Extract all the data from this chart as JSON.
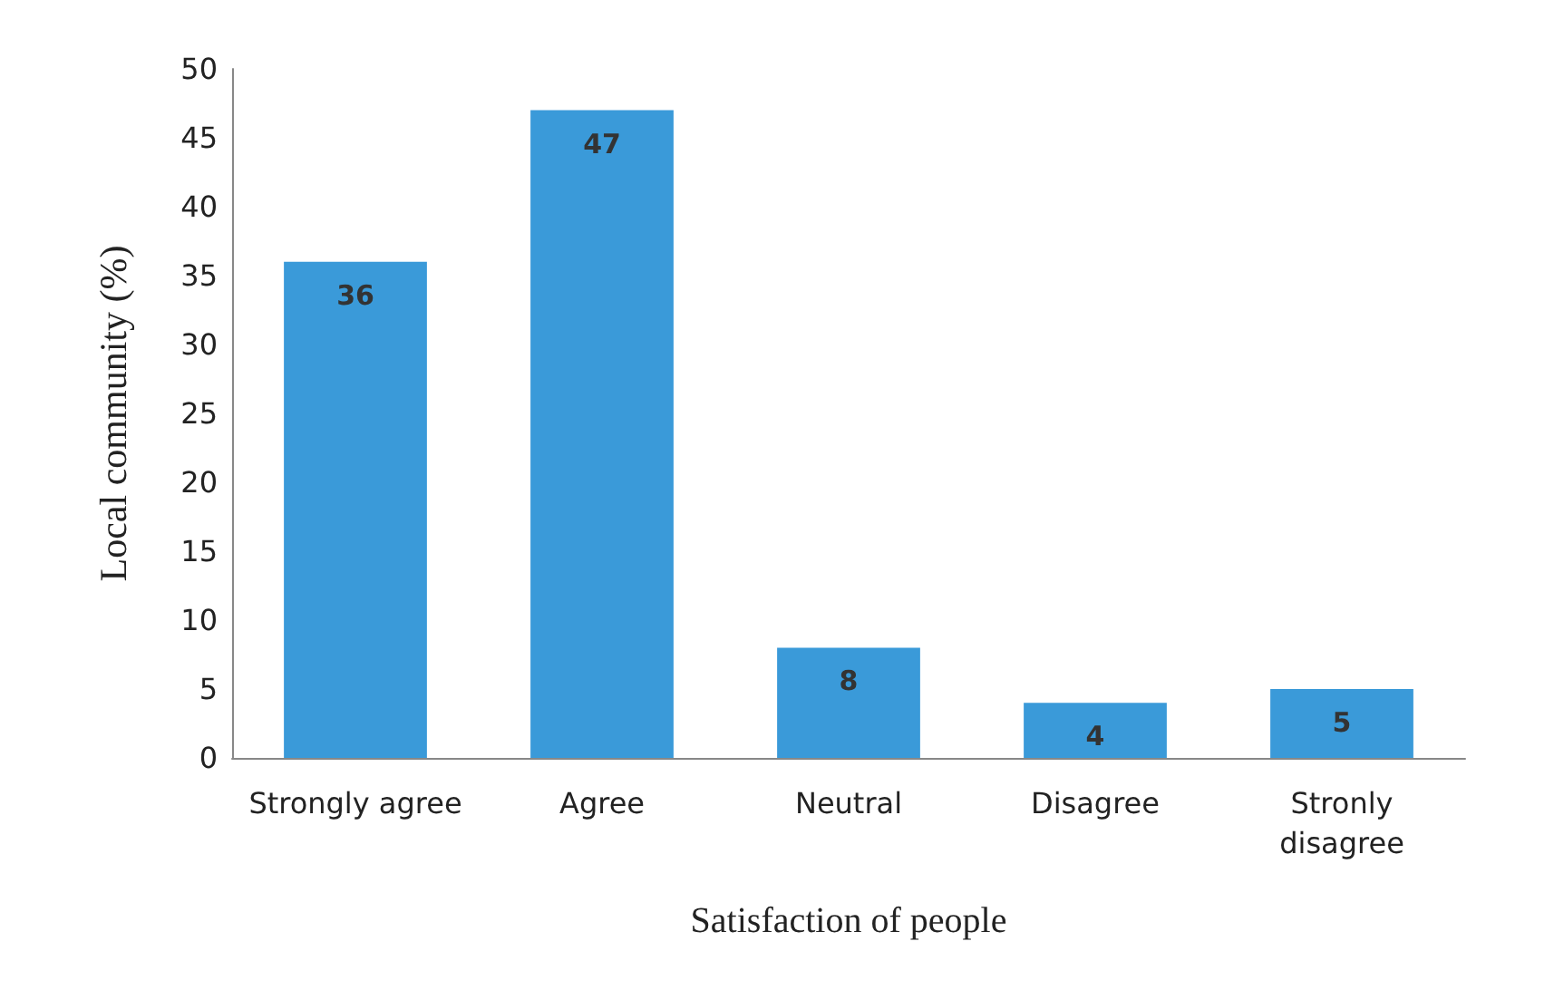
{
  "chart_data": {
    "type": "bar",
    "xlabel": "Satisfaction of people",
    "ylabel": "Local community (%)",
    "categories": [
      "Strongly agree",
      "Agree",
      "Neutral",
      "Disagree",
      "Stronly\ndisagree"
    ],
    "values": [
      36,
      47,
      8,
      4,
      5
    ],
    "color": "#3a9ad9",
    "ylim": [
      0,
      50
    ],
    "yticks": [
      0,
      5,
      10,
      15,
      20,
      25,
      30,
      35,
      40,
      45,
      50
    ],
    "grid": false,
    "data_labels": true
  }
}
